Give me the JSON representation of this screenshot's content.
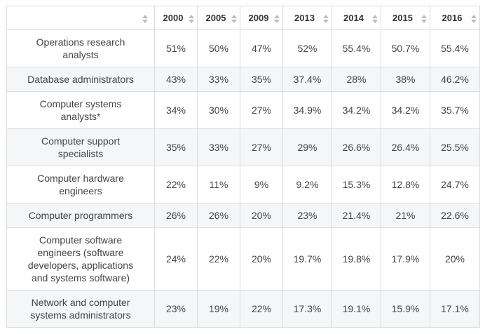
{
  "table": {
    "headers": [
      "",
      "2000",
      "2005",
      "2009",
      "2013",
      "2014",
      "2015",
      "2016"
    ],
    "rows": [
      {
        "label": "Operations research analysts",
        "values": [
          "51%",
          "50%",
          "47%",
          "52%",
          "55.4%",
          "50.7%",
          "55.4%"
        ]
      },
      {
        "label": "Database administrators",
        "values": [
          "43%",
          "33%",
          "35%",
          "37.4%",
          "28%",
          "38%",
          "46.2%"
        ]
      },
      {
        "label": "Computer systems analysts*",
        "values": [
          "34%",
          "30%",
          "27%",
          "34.9%",
          "34.2%",
          "34.2%",
          "35.7%"
        ]
      },
      {
        "label": "Computer support specialists",
        "values": [
          "35%",
          "33%",
          "27%",
          "29%",
          "26.6%",
          "26.4%",
          "25.5%"
        ]
      },
      {
        "label": "Computer hardware engineers",
        "values": [
          "22%",
          "11%",
          "9%",
          "9.2%",
          "15.3%",
          "12.8%",
          "24.7%"
        ]
      },
      {
        "label": "Computer programmers",
        "values": [
          "26%",
          "26%",
          "20%",
          "23%",
          "21.4%",
          "21%",
          "22.6%"
        ]
      },
      {
        "label": "Computer software engineers (software developers, applications and systems software)",
        "values": [
          "24%",
          "22%",
          "20%",
          "19.7%",
          "19.8%",
          "17.9%",
          "20%"
        ]
      },
      {
        "label": "Network and computer systems administrators",
        "values": [
          "23%",
          "19%",
          "22%",
          "17.3%",
          "19.1%",
          "15.9%",
          "17.1%"
        ]
      }
    ]
  },
  "icons": {
    "sort": "sort-arrows-icon"
  },
  "colors": {
    "border": "#dcdcdc",
    "stripe": "#f4f6f8",
    "sort_icon": "#b8bcc2"
  }
}
